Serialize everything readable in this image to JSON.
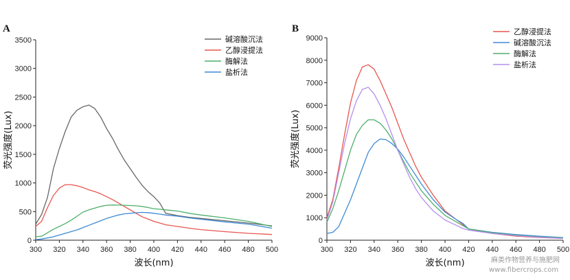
{
  "chart_data": [
    {
      "type": "line",
      "panel_label": "A",
      "xlabel": "波长(nm)",
      "ylabel": "荧光强度(Lux)",
      "xlim": [
        300,
        500
      ],
      "ylim": [
        0,
        3500
      ],
      "xticks": [
        300,
        320,
        340,
        360,
        380,
        400,
        420,
        440,
        460,
        480,
        500
      ],
      "yticks": [
        0,
        500,
        1000,
        1500,
        2000,
        2500,
        3000,
        3500
      ],
      "grid": false,
      "legend_position": "top-right",
      "x": [
        300,
        305,
        310,
        315,
        320,
        325,
        330,
        335,
        340,
        345,
        350,
        355,
        360,
        365,
        370,
        375,
        380,
        385,
        390,
        395,
        400,
        405,
        410,
        420,
        430,
        440,
        460,
        480,
        500
      ],
      "series": [
        {
          "name": "碱溶酸沉法",
          "color": "#666666",
          "values": [
            280,
            450,
            750,
            1250,
            1600,
            1900,
            2150,
            2270,
            2330,
            2360,
            2300,
            2150,
            1950,
            1780,
            1580,
            1400,
            1250,
            1100,
            960,
            850,
            760,
            650,
            470,
            430,
            400,
            380,
            340,
            300,
            250
          ]
        },
        {
          "name": "乙醇浸提法",
          "color": "#e8554e",
          "values": [
            240,
            330,
            570,
            780,
            910,
            970,
            970,
            950,
            920,
            880,
            850,
            810,
            760,
            710,
            650,
            590,
            530,
            470,
            410,
            370,
            330,
            300,
            270,
            240,
            210,
            185,
            150,
            120,
            100
          ]
        },
        {
          "name": "酶解法",
          "color": "#4caf6a",
          "values": [
            60,
            70,
            130,
            190,
            240,
            290,
            350,
            420,
            490,
            530,
            560,
            590,
            610,
            615,
            612,
            610,
            605,
            600,
            590,
            570,
            550,
            540,
            530,
            510,
            470,
            440,
            390,
            330,
            240
          ]
        },
        {
          "name": "盐析法",
          "color": "#3d8ad6",
          "values": [
            10,
            20,
            40,
            60,
            90,
            120,
            150,
            180,
            220,
            260,
            300,
            340,
            380,
            410,
            440,
            460,
            470,
            480,
            485,
            482,
            470,
            455,
            440,
            420,
            390,
            365,
            320,
            280,
            210
          ]
        }
      ]
    },
    {
      "type": "line",
      "panel_label": "B",
      "xlabel": "波长(nm)",
      "ylabel": "荧光强度(Lux)",
      "xlim": [
        300,
        500
      ],
      "ylim": [
        0,
        9000
      ],
      "xticks": [
        300,
        320,
        340,
        360,
        380,
        400,
        420,
        440,
        460,
        480,
        500
      ],
      "yticks": [
        0,
        1000,
        2000,
        3000,
        4000,
        5000,
        6000,
        7000,
        8000,
        9000
      ],
      "grid": false,
      "legend_position": "top-right",
      "x": [
        300,
        305,
        310,
        315,
        320,
        325,
        330,
        335,
        340,
        345,
        350,
        355,
        360,
        365,
        370,
        375,
        380,
        390,
        400,
        410,
        415,
        420,
        440,
        460,
        480,
        500
      ],
      "series": [
        {
          "name": "乙醇浸提法",
          "color": "#e8554e",
          "values": [
            1000,
            1800,
            3200,
            4700,
            6100,
            7100,
            7700,
            7800,
            7600,
            7100,
            6500,
            5900,
            5200,
            4500,
            3900,
            3300,
            2800,
            2000,
            1300,
            900,
            700,
            500,
            300,
            180,
            120,
            80
          ]
        },
        {
          "name": "碱溶酸沉法",
          "color": "#3d8ad6",
          "values": [
            300,
            350,
            600,
            1200,
            1800,
            2500,
            3200,
            3900,
            4300,
            4500,
            4470,
            4300,
            4050,
            3700,
            3300,
            2900,
            2500,
            1800,
            1250,
            900,
            750,
            500,
            350,
            250,
            180,
            120
          ]
        },
        {
          "name": "酶解法",
          "color": "#4caf6a",
          "values": [
            800,
            1400,
            2200,
            3100,
            4000,
            4700,
            5100,
            5350,
            5350,
            5200,
            4900,
            4500,
            4000,
            3500,
            3000,
            2600,
            2200,
            1600,
            1100,
            800,
            650,
            500,
            330,
            220,
            150,
            100
          ]
        },
        {
          "name": "盐析法",
          "color": "#b48ef0",
          "values": [
            900,
            1700,
            3000,
            4300,
            5400,
            6200,
            6700,
            6800,
            6500,
            6000,
            5400,
            4700,
            4000,
            3400,
            2800,
            2300,
            1900,
            1300,
            900,
            650,
            520,
            450,
            300,
            200,
            130,
            80
          ]
        }
      ]
    }
  ],
  "watermark": {
    "line1": "麻类作物营养与施肥网",
    "line2": "www.fibercrops.com"
  }
}
